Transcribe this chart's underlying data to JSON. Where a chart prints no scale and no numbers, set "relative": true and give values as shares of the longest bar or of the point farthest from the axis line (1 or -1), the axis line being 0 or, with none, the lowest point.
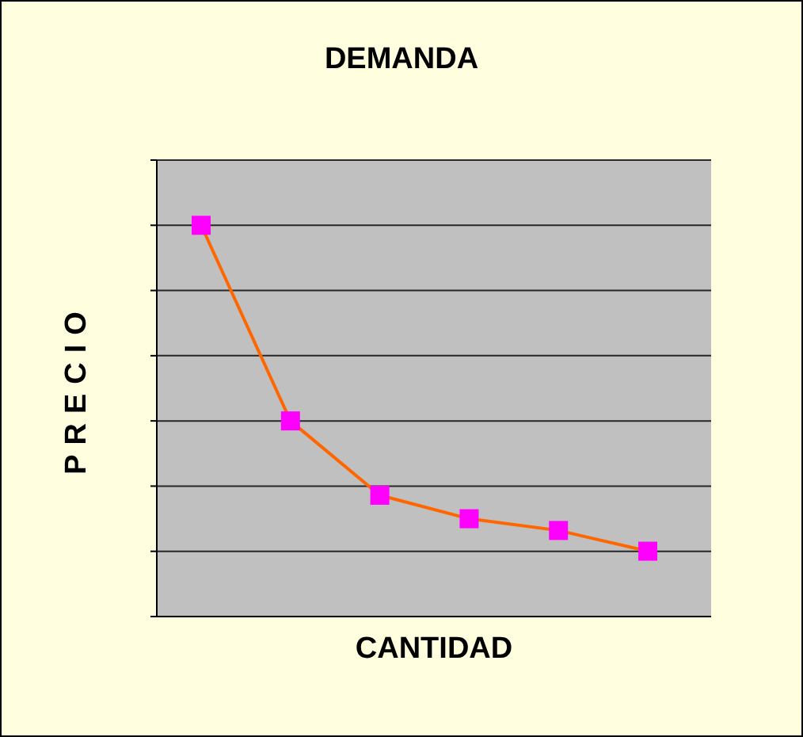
{
  "chart_data": {
    "type": "line",
    "title": "DEMANDA",
    "xlabel": "CANTIDAD",
    "ylabel": "PRECIO",
    "relative": true,
    "grid": "y",
    "marker": "square",
    "legend": false,
    "categories": [
      null,
      null,
      null,
      null,
      null,
      null
    ],
    "series": [
      {
        "color": "#ff6600",
        "colors": [
          "#ff00ff",
          "#ff00ff",
          "#ff00ff",
          "#ff00ff",
          "#ff00ff",
          "#ff00ff"
        ],
        "values": [
          1,
          0.5,
          0.31,
          0.25,
          0.22,
          0.167
        ]
      }
    ]
  }
}
